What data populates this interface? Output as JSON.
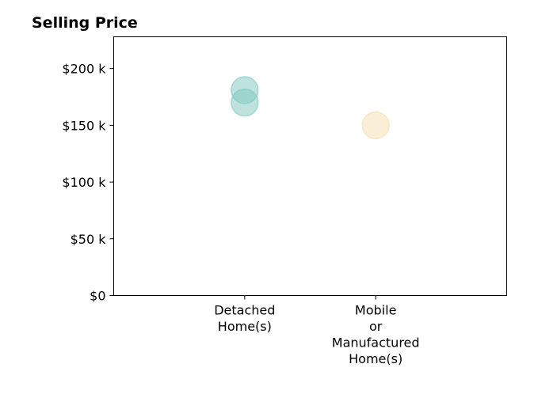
{
  "chart_data": {
    "type": "scatter",
    "title": "Selling Price",
    "xlabel": "",
    "ylabel": "",
    "categories": [
      [
        "Detached",
        "Home(s)"
      ],
      [
        "Mobile",
        "or",
        "Manufactured",
        "Home(s)"
      ]
    ],
    "xlim": [
      -1,
      2
    ],
    "ylim": [
      0,
      228000
    ],
    "y_ticks": [
      {
        "value": 0,
        "label": "$0"
      },
      {
        "value": 50000,
        "label": "$50 k"
      },
      {
        "value": 100000,
        "label": "$100 k"
      },
      {
        "value": 150000,
        "label": "$150 k"
      },
      {
        "value": 200000,
        "label": "$200 k"
      }
    ],
    "grid": false,
    "legend": "none",
    "points": [
      {
        "category_index": 0,
        "value": 181000,
        "color": "#7ec8bf"
      },
      {
        "category_index": 0,
        "value": 170000,
        "color": "#7ec8bf"
      },
      {
        "category_index": 1,
        "value": 150000,
        "color": "#f5deb0"
      }
    ]
  }
}
